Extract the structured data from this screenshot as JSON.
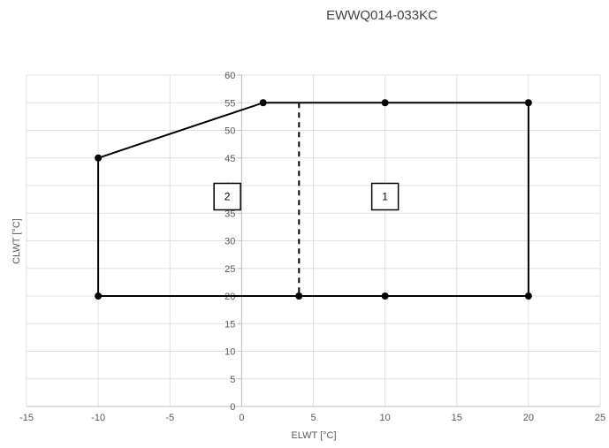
{
  "chart_data": {
    "type": "scatter",
    "title": "EWWQ014-033KC",
    "xlabel": "ELWT [°C]",
    "ylabel": "CLWT [°C]",
    "xlim": [
      -15,
      25
    ],
    "ylim": [
      0,
      60
    ],
    "x_ticks": [
      -15,
      -10,
      -5,
      0,
      5,
      10,
      15,
      20,
      25
    ],
    "y_ticks": [
      0,
      5,
      10,
      15,
      20,
      25,
      30,
      35,
      40,
      45,
      50,
      55,
      60
    ],
    "grid": true,
    "legend": "none",
    "series": [
      {
        "style": "solid",
        "points": [
          {
            "x": -10,
            "y": 45
          },
          {
            "x": 1.5,
            "y": 55
          },
          {
            "x": 10,
            "y": 55
          },
          {
            "x": 20,
            "y": 55
          },
          {
            "x": 20,
            "y": 20
          },
          {
            "x": 10,
            "y": 20
          },
          {
            "x": 4,
            "y": 20
          },
          {
            "x": -10,
            "y": 20
          },
          {
            "x": -10,
            "y": 45
          }
        ]
      },
      {
        "style": "dashed",
        "points": [
          {
            "x": 4,
            "y": 55
          },
          {
            "x": 4,
            "y": 20
          }
        ]
      }
    ],
    "annotations": [
      {
        "text": "1",
        "x": 10,
        "y": 38
      },
      {
        "text": "2",
        "x": -1,
        "y": 38
      }
    ]
  }
}
